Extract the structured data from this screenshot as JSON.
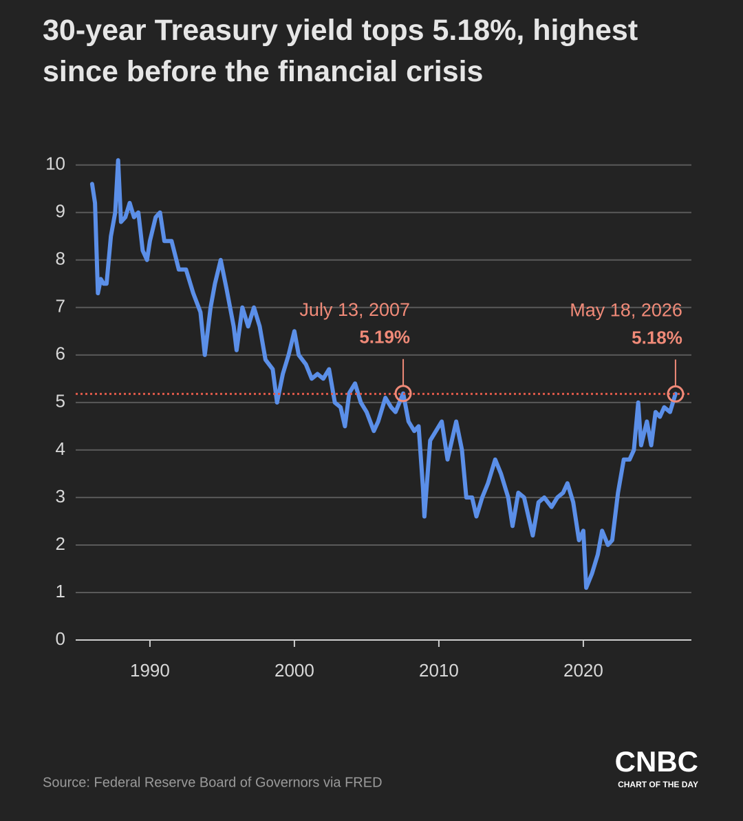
{
  "chart_data": {
    "type": "line",
    "title": "30-year Treasury yield tops 5.18%, highest since before the financial crisis",
    "source": "Source: Federal Reserve Board of Governors via FRED",
    "brand": "CNBC",
    "brand_sub": "CHART OF THE DAY",
    "color": "#5b8fe8",
    "grid": true,
    "xlim": [
      1984.86,
      2027.48
    ],
    "xticks": [
      1990,
      2000,
      2010,
      2020
    ],
    "ylim": [
      0,
      10.3
    ],
    "yticks": [
      0,
      1,
      2,
      3,
      4,
      5,
      6,
      7,
      8,
      9,
      10
    ],
    "x": [
      1986.0,
      1986.2,
      1986.4,
      1986.6,
      1986.8,
      1987.0,
      1987.3,
      1987.6,
      1987.8,
      1988.0,
      1988.3,
      1988.6,
      1988.9,
      1989.2,
      1989.5,
      1989.8,
      1990.0,
      1990.4,
      1990.7,
      1991.0,
      1991.5,
      1992.0,
      1992.5,
      1993.0,
      1993.5,
      1993.8,
      1994.2,
      1994.5,
      1994.9,
      1995.3,
      1995.8,
      1996.0,
      1996.4,
      1996.8,
      1997.2,
      1997.6,
      1998.0,
      1998.5,
      1998.8,
      1999.2,
      1999.6,
      2000.0,
      2000.3,
      2000.8,
      2001.2,
      2001.6,
      2002.0,
      2002.4,
      2002.8,
      2003.2,
      2003.5,
      2003.8,
      2004.2,
      2004.6,
      2005.0,
      2005.5,
      2005.8,
      2006.3,
      2006.7,
      2007.0,
      2007.53,
      2007.9,
      2008.3,
      2008.6,
      2008.9,
      2009.0,
      2009.4,
      2009.8,
      2010.2,
      2010.6,
      2010.9,
      2011.2,
      2011.6,
      2011.9,
      2012.3,
      2012.6,
      2013.0,
      2013.4,
      2013.9,
      2014.3,
      2014.8,
      2015.1,
      2015.5,
      2015.9,
      2016.5,
      2016.9,
      2017.3,
      2017.8,
      2018.2,
      2018.6,
      2018.9,
      2019.3,
      2019.7,
      2020.0,
      2020.2,
      2020.6,
      2021.0,
      2021.3,
      2021.7,
      2022.0,
      2022.4,
      2022.8,
      2023.2,
      2023.5,
      2023.8,
      2024.0,
      2024.4,
      2024.7,
      2025.0,
      2025.3,
      2025.6,
      2026.0,
      2026.38
    ],
    "values": [
      9.6,
      9.2,
      7.3,
      7.6,
      7.5,
      7.5,
      8.5,
      9.0,
      10.1,
      8.8,
      8.9,
      9.2,
      8.9,
      9.0,
      8.2,
      8.0,
      8.4,
      8.9,
      9.0,
      8.4,
      8.4,
      7.8,
      7.8,
      7.3,
      6.9,
      6.0,
      7.0,
      7.5,
      8.0,
      7.4,
      6.6,
      6.1,
      7.0,
      6.6,
      7.0,
      6.6,
      5.9,
      5.7,
      5.0,
      5.6,
      6.0,
      6.5,
      6.0,
      5.8,
      5.5,
      5.6,
      5.5,
      5.7,
      5.0,
      4.9,
      4.5,
      5.2,
      5.4,
      5.0,
      4.8,
      4.4,
      4.6,
      5.1,
      4.9,
      4.8,
      5.19,
      4.6,
      4.4,
      4.5,
      3.2,
      2.6,
      4.2,
      4.4,
      4.6,
      3.8,
      4.2,
      4.6,
      4.0,
      3.0,
      3.0,
      2.6,
      3.0,
      3.3,
      3.8,
      3.5,
      3.0,
      2.4,
      3.1,
      3.0,
      2.2,
      2.9,
      3.0,
      2.8,
      3.0,
      3.1,
      3.3,
      2.9,
      2.1,
      2.3,
      1.1,
      1.4,
      1.8,
      2.3,
      2.0,
      2.1,
      3.1,
      3.8,
      3.8,
      4.0,
      5.0,
      4.1,
      4.6,
      4.1,
      4.8,
      4.7,
      4.9,
      4.8,
      5.18
    ],
    "annotations": [
      {
        "x": 2007.53,
        "value": 5.19,
        "date_label": "July 13, 2007",
        "value_label": "5.19%"
      },
      {
        "x": 2026.38,
        "value": 5.18,
        "date_label": "May 18, 2026",
        "value_label": "5.18%"
      }
    ],
    "annotation_color": "#f08a78"
  }
}
